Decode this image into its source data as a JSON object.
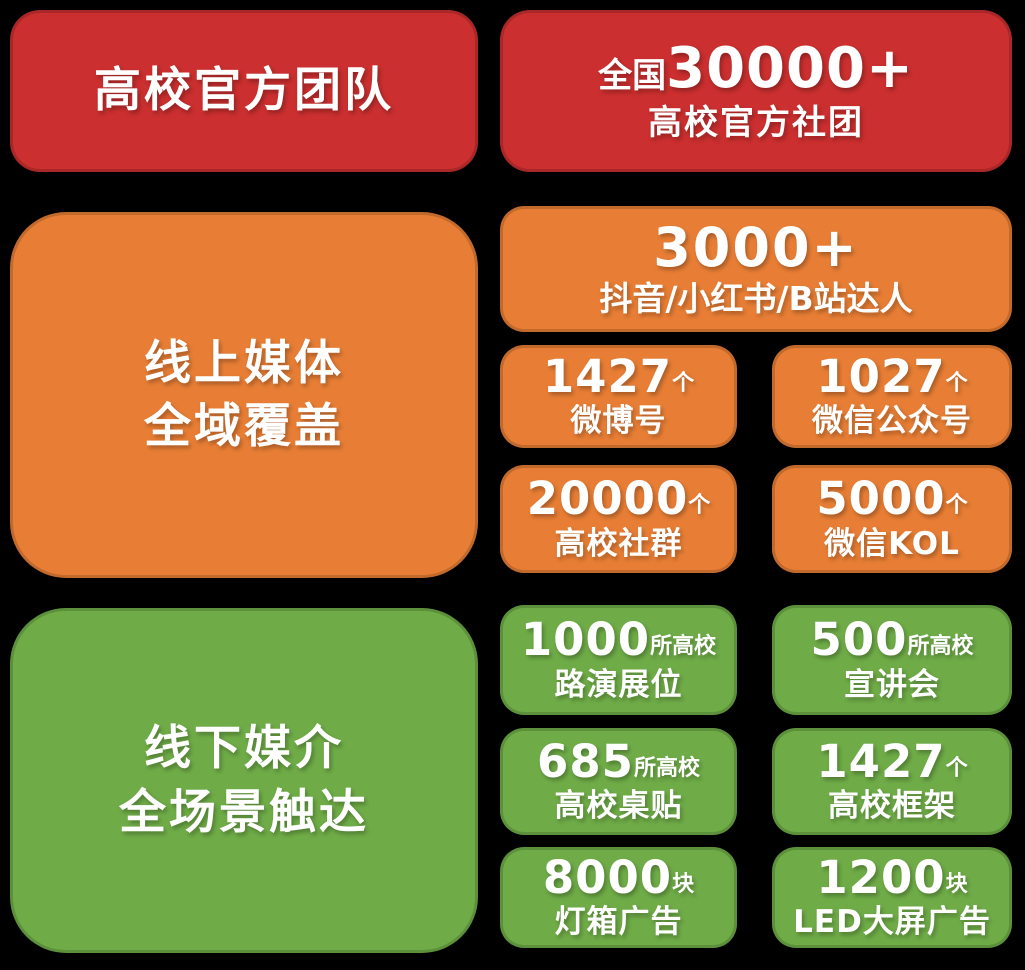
{
  "canvas": {
    "background": "#000000"
  },
  "colors": {
    "red": "#CB2F2F",
    "orange": "#E87E35",
    "green": "#6FAC47",
    "text": "#FFFFFF"
  },
  "section_official": {
    "title": "高校官方团队",
    "stat_prefix": "全国",
    "stat_number": "30000+",
    "stat_label": "高校官方社团"
  },
  "section_online": {
    "title_line1": "线上媒体",
    "title_line2": "全域覆盖",
    "feature_number": "3000+",
    "feature_label": "抖音/小红书/B站达人",
    "stats": [
      {
        "number": "1427",
        "unit": "个",
        "label": "微博号"
      },
      {
        "number": "1027",
        "unit": "个",
        "label": "微信公众号"
      },
      {
        "number": "20000",
        "unit": "个",
        "label": "高校社群"
      },
      {
        "number": "5000",
        "unit": "个",
        "label": "微信KOL"
      }
    ]
  },
  "section_offline": {
    "title_line1": "线下媒介",
    "title_line2": "全场景触达",
    "stats": [
      {
        "number": "1000",
        "unit": "所高校",
        "label": "路演展位"
      },
      {
        "number": "500",
        "unit": "所高校",
        "label": "宣讲会"
      },
      {
        "number": "685",
        "unit": "所高校",
        "label": "高校桌贴"
      },
      {
        "number": "1427",
        "unit": "个",
        "label": "高校框架"
      },
      {
        "number": "8000",
        "unit": "块",
        "label": "灯箱广告"
      },
      {
        "number": "1200",
        "unit": "块",
        "label": "LED大屏广告"
      }
    ]
  }
}
